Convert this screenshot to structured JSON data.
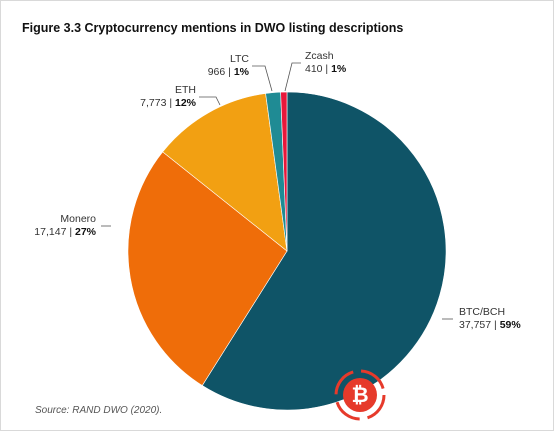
{
  "figure": {
    "title": "Figure 3.3 Cryptocurrency mentions in DWO listing descriptions",
    "source": "Source: RAND DWO (2020)."
  },
  "chart_data": {
    "type": "pie",
    "title": "Figure 3.3 Cryptocurrency mentions in DWO listing descriptions",
    "slices": [
      {
        "label": "BTC/BCH",
        "value": 37757,
        "value_text": "37,757",
        "percent_text": "59%",
        "color": "#0f5467"
      },
      {
        "label": "Monero",
        "value": 17147,
        "value_text": "17,147",
        "percent_text": "27%",
        "color": "#ef6d09"
      },
      {
        "label": "ETH",
        "value": 7773,
        "value_text": "7,773",
        "percent_text": "12%",
        "color": "#f2a012"
      },
      {
        "label": "LTC",
        "value": 966,
        "value_text": "966",
        "percent_text": "1%",
        "color": "#1f8b94"
      },
      {
        "label": "Zcash",
        "value": 410,
        "value_text": "410",
        "percent_text": "1%",
        "color": "#e8173a"
      }
    ],
    "start": "12 o'clock",
    "direction": "clockwise"
  },
  "watermark": {
    "icon": "bitcoin-logo-icon",
    "color": "#e63a2b"
  }
}
